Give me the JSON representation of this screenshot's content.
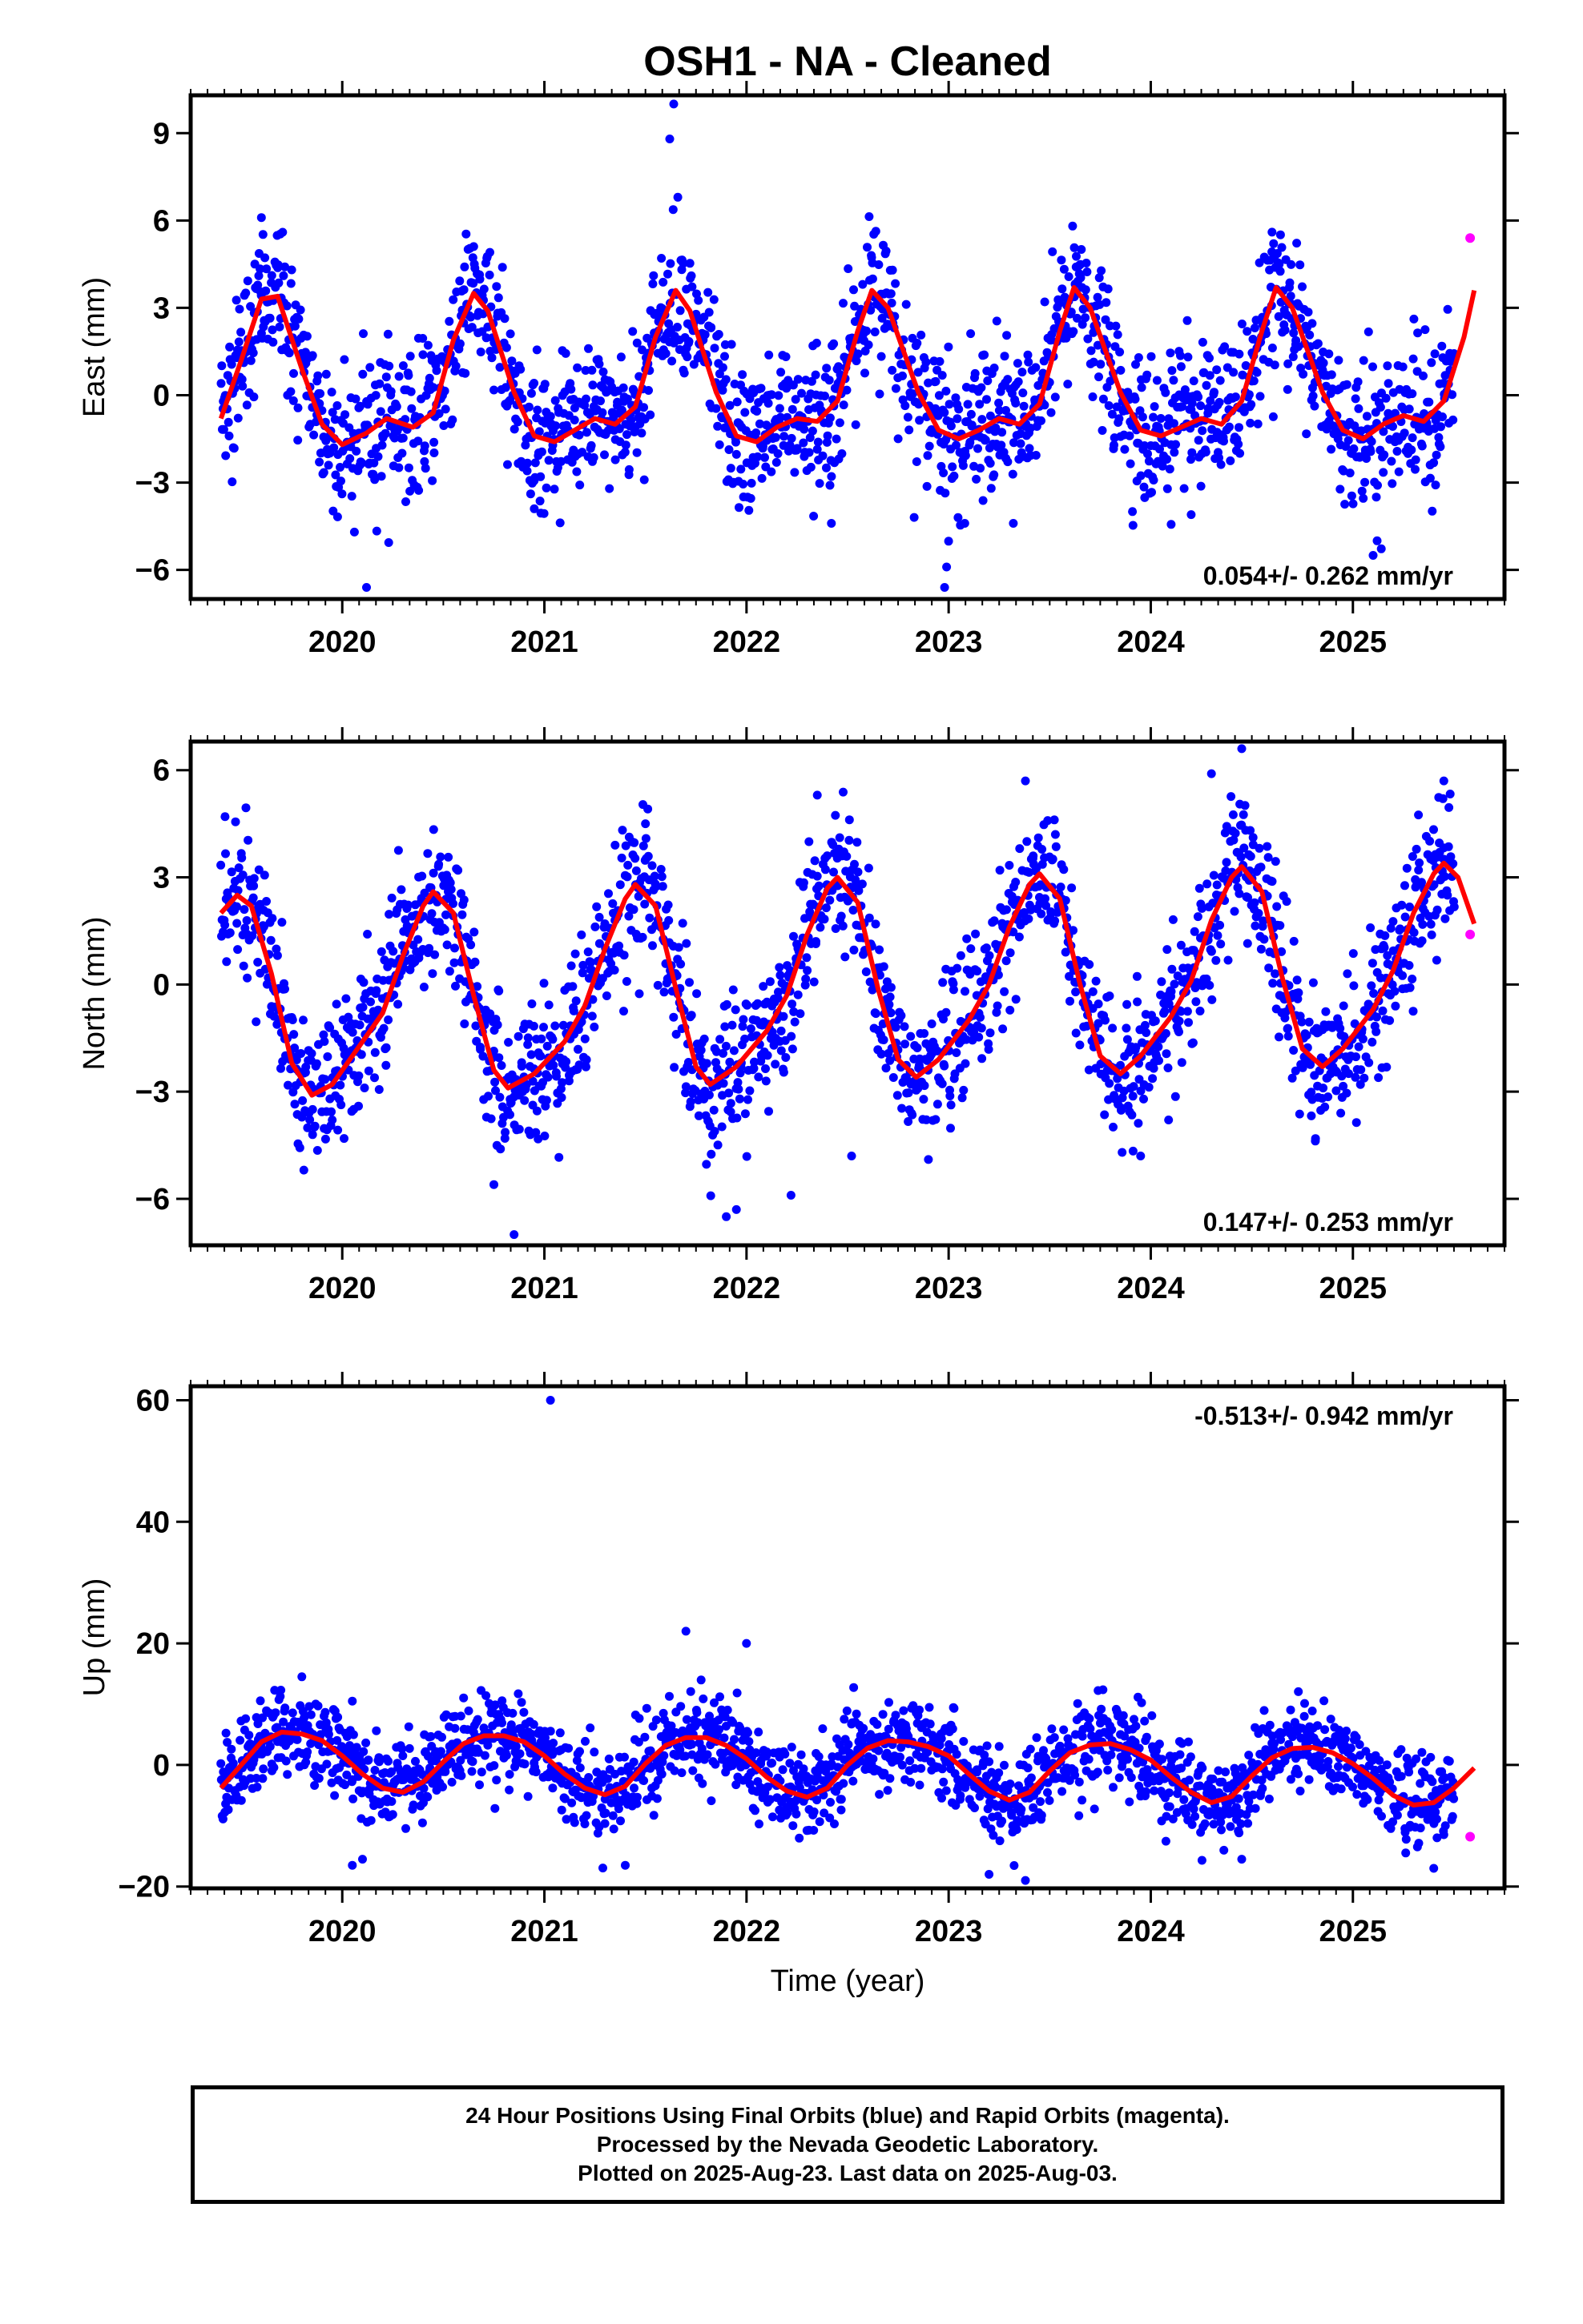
{
  "title": "OSH1  - NA - Cleaned",
  "x_axis_label": "Time (year)",
  "footer": {
    "line1": "24 Hour Positions Using Final Orbits (blue) and Rapid Orbits (magenta).",
    "line2": "Processed by the Nevada Geodetic Laboratory.",
    "line3": "Plotted on 2025-Aug-23. Last data on 2025-Aug-03."
  },
  "colors": {
    "final_orbits": "#0000ff",
    "rapid_orbits": "#ff00ff",
    "model_fit": "#ff0000",
    "frame": "#000000"
  },
  "chart_data": [
    {
      "type": "scatter",
      "component": "east",
      "ylabel": "East (mm)",
      "xlim": [
        2019.25,
        2025.75
      ],
      "ylim": [
        -7.0,
        10.3
      ],
      "x_ticks": [
        2020,
        2021,
        2022,
        2023,
        2024,
        2025
      ],
      "y_ticks": [
        -6,
        -3,
        0,
        3,
        6,
        9
      ],
      "velocity_label": "0.054+/- 0.262 mm/yr",
      "velocity_label_position": "bottom-right",
      "data_start": 2019.4,
      "data_end": 2025.5,
      "seasonal_fit": [
        [
          2019.4,
          -0.8
        ],
        [
          2019.5,
          1.2
        ],
        [
          2019.6,
          3.3
        ],
        [
          2019.68,
          3.4
        ],
        [
          2019.8,
          0.9
        ],
        [
          2019.9,
          -1.0
        ],
        [
          2020.0,
          -1.7
        ],
        [
          2020.12,
          -1.3
        ],
        [
          2020.22,
          -0.8
        ],
        [
          2020.35,
          -1.1
        ],
        [
          2020.45,
          -0.6
        ],
        [
          2020.55,
          1.9
        ],
        [
          2020.65,
          3.5
        ],
        [
          2020.72,
          2.9
        ],
        [
          2020.85,
          0.1
        ],
        [
          2020.95,
          -1.4
        ],
        [
          2021.05,
          -1.6
        ],
        [
          2021.15,
          -1.2
        ],
        [
          2021.25,
          -0.8
        ],
        [
          2021.35,
          -1.0
        ],
        [
          2021.45,
          -0.4
        ],
        [
          2021.55,
          2.0
        ],
        [
          2021.65,
          3.6
        ],
        [
          2021.72,
          2.9
        ],
        [
          2021.85,
          0.1
        ],
        [
          2021.95,
          -1.4
        ],
        [
          2022.05,
          -1.6
        ],
        [
          2022.15,
          -1.1
        ],
        [
          2022.25,
          -0.8
        ],
        [
          2022.35,
          -0.9
        ],
        [
          2022.45,
          -0.2
        ],
        [
          2022.55,
          2.2
        ],
        [
          2022.62,
          3.6
        ],
        [
          2022.7,
          3.0
        ],
        [
          2022.85,
          0.1
        ],
        [
          2022.95,
          -1.2
        ],
        [
          2023.05,
          -1.5
        ],
        [
          2023.15,
          -1.2
        ],
        [
          2023.25,
          -0.8
        ],
        [
          2023.35,
          -1.0
        ],
        [
          2023.45,
          -0.3
        ],
        [
          2023.55,
          2.2
        ],
        [
          2023.62,
          3.7
        ],
        [
          2023.7,
          3.0
        ],
        [
          2023.85,
          0.1
        ],
        [
          2023.95,
          -1.2
        ],
        [
          2024.05,
          -1.4
        ],
        [
          2024.15,
          -1.1
        ],
        [
          2024.25,
          -0.8
        ],
        [
          2024.35,
          -1.0
        ],
        [
          2024.45,
          -0.2
        ],
        [
          2024.55,
          2.2
        ],
        [
          2024.62,
          3.7
        ],
        [
          2024.7,
          3.0
        ],
        [
          2024.85,
          0.1
        ],
        [
          2024.95,
          -1.2
        ],
        [
          2025.05,
          -1.5
        ],
        [
          2025.15,
          -1.0
        ],
        [
          2025.25,
          -0.7
        ],
        [
          2025.35,
          -0.9
        ],
        [
          2025.45,
          -0.2
        ],
        [
          2025.55,
          2.0
        ],
        [
          2025.6,
          3.6
        ]
      ],
      "noise_sd": 1.25,
      "outliers": [
        [
          2019.6,
          6.1
        ],
        [
          2020.06,
          -4.7
        ],
        [
          2020.12,
          -6.6
        ],
        [
          2020.95,
          -3.9
        ],
        [
          2021.62,
          8.8
        ],
        [
          2021.64,
          10.0
        ],
        [
          2021.66,
          6.8
        ],
        [
          2022.42,
          -4.4
        ],
        [
          2022.98,
          -6.6
        ],
        [
          2022.99,
          -5.9
        ],
        [
          2023.08,
          -4.4
        ],
        [
          2023.32,
          -4.4
        ],
        [
          2024.2,
          -4.1
        ],
        [
          2024.6,
          5.6
        ],
        [
          2025.1,
          -5.5
        ],
        [
          2025.12,
          -5.0
        ]
      ],
      "rapid_points": [
        [
          2025.58,
          5.4
        ]
      ]
    },
    {
      "type": "scatter",
      "component": "north",
      "ylabel": "North (mm)",
      "xlim": [
        2019.25,
        2025.75
      ],
      "ylim": [
        -7.3,
        6.8
      ],
      "x_ticks": [
        2020,
        2021,
        2022,
        2023,
        2024,
        2025
      ],
      "y_ticks": [
        -6,
        -3,
        0,
        3,
        6
      ],
      "velocity_label": "0.147+/- 0.253 mm/yr",
      "velocity_label_position": "bottom-right",
      "data_start": 2019.4,
      "data_end": 2025.5,
      "seasonal_fit": [
        [
          2019.4,
          2.0
        ],
        [
          2019.48,
          2.5
        ],
        [
          2019.55,
          2.2
        ],
        [
          2019.65,
          0.3
        ],
        [
          2019.75,
          -2.2
        ],
        [
          2019.85,
          -3.1
        ],
        [
          2019.95,
          -2.8
        ],
        [
          2020.1,
          -1.6
        ],
        [
          2020.2,
          -0.8
        ],
        [
          2020.3,
          0.8
        ],
        [
          2020.4,
          2.2
        ],
        [
          2020.45,
          2.6
        ],
        [
          2020.55,
          2.0
        ],
        [
          2020.65,
          -0.3
        ],
        [
          2020.75,
          -2.4
        ],
        [
          2020.82,
          -2.9
        ],
        [
          2020.95,
          -2.5
        ],
        [
          2021.1,
          -1.6
        ],
        [
          2021.2,
          -0.6
        ],
        [
          2021.3,
          1.0
        ],
        [
          2021.4,
          2.4
        ],
        [
          2021.45,
          2.8
        ],
        [
          2021.55,
          2.2
        ],
        [
          2021.65,
          -0.1
        ],
        [
          2021.75,
          -2.3
        ],
        [
          2021.82,
          -2.8
        ],
        [
          2021.95,
          -2.3
        ],
        [
          2022.1,
          -1.3
        ],
        [
          2022.2,
          -0.3
        ],
        [
          2022.3,
          1.4
        ],
        [
          2022.4,
          2.7
        ],
        [
          2022.45,
          3.0
        ],
        [
          2022.55,
          2.3
        ],
        [
          2022.65,
          -0.1
        ],
        [
          2022.75,
          -2.1
        ],
        [
          2022.84,
          -2.6
        ],
        [
          2022.95,
          -2.1
        ],
        [
          2023.1,
          -1.0
        ],
        [
          2023.2,
          0.0
        ],
        [
          2023.3,
          1.6
        ],
        [
          2023.4,
          2.8
        ],
        [
          2023.45,
          3.1
        ],
        [
          2023.55,
          2.4
        ],
        [
          2023.65,
          0.0
        ],
        [
          2023.75,
          -2.0
        ],
        [
          2023.85,
          -2.5
        ],
        [
          2023.95,
          -2.0
        ],
        [
          2024.1,
          -0.9
        ],
        [
          2024.2,
          0.1
        ],
        [
          2024.3,
          1.8
        ],
        [
          2024.4,
          3.0
        ],
        [
          2024.45,
          3.3
        ],
        [
          2024.55,
          2.6
        ],
        [
          2024.65,
          0.2
        ],
        [
          2024.75,
          -1.8
        ],
        [
          2024.85,
          -2.3
        ],
        [
          2024.95,
          -1.8
        ],
        [
          2025.1,
          -0.7
        ],
        [
          2025.2,
          0.4
        ],
        [
          2025.3,
          2.0
        ],
        [
          2025.4,
          3.1
        ],
        [
          2025.45,
          3.4
        ],
        [
          2025.52,
          3.0
        ],
        [
          2025.6,
          1.7
        ]
      ],
      "noise_sd": 1.0,
      "outliers": [
        [
          2019.42,
          4.7
        ],
        [
          2020.75,
          -5.6
        ],
        [
          2020.85,
          -7.0
        ],
        [
          2021.35,
          3.9
        ],
        [
          2021.5,
          4.5
        ],
        [
          2021.9,
          -6.5
        ],
        [
          2021.95,
          -6.3
        ],
        [
          2022.22,
          -5.9
        ],
        [
          2022.35,
          5.3
        ],
        [
          2022.52,
          -4.8
        ],
        [
          2022.9,
          -4.9
        ],
        [
          2023.38,
          5.7
        ],
        [
          2023.95,
          -4.8
        ],
        [
          2024.3,
          5.9
        ],
        [
          2024.45,
          6.6
        ],
        [
          2025.45,
          5.7
        ]
      ],
      "rapid_points": [
        [
          2025.58,
          1.4
        ]
      ]
    },
    {
      "type": "scatter",
      "component": "up",
      "ylabel": "Up (mm)",
      "xlim": [
        2019.25,
        2025.75
      ],
      "ylim": [
        -20.3,
        62.3
      ],
      "x_ticks": [
        2020,
        2021,
        2022,
        2023,
        2024,
        2025
      ],
      "y_ticks": [
        -20,
        0,
        20,
        40,
        60
      ],
      "velocity_label": "-0.513+/- 0.942 mm/yr",
      "velocity_label_position": "top-right",
      "data_start": 2019.4,
      "data_end": 2025.5,
      "seasonal_fit": [
        [
          2019.4,
          -3.8
        ],
        [
          2019.5,
          0.0
        ],
        [
          2019.6,
          3.8
        ],
        [
          2019.7,
          5.4
        ],
        [
          2019.8,
          5.1
        ],
        [
          2019.9,
          4.0
        ],
        [
          2020.0,
          1.5
        ],
        [
          2020.1,
          -1.5
        ],
        [
          2020.2,
          -3.8
        ],
        [
          2020.3,
          -4.5
        ],
        [
          2020.4,
          -2.8
        ],
        [
          2020.5,
          0.5
        ],
        [
          2020.6,
          3.5
        ],
        [
          2020.7,
          4.8
        ],
        [
          2020.8,
          4.8
        ],
        [
          2020.9,
          3.8
        ],
        [
          2021.0,
          1.5
        ],
        [
          2021.1,
          -1.5
        ],
        [
          2021.2,
          -3.8
        ],
        [
          2021.3,
          -4.9
        ],
        [
          2021.4,
          -3.5
        ],
        [
          2021.5,
          0.2
        ],
        [
          2021.6,
          3.2
        ],
        [
          2021.7,
          4.5
        ],
        [
          2021.8,
          4.5
        ],
        [
          2021.9,
          3.2
        ],
        [
          2022.0,
          1.0
        ],
        [
          2022.1,
          -2.0
        ],
        [
          2022.2,
          -4.3
        ],
        [
          2022.3,
          -5.3
        ],
        [
          2022.4,
          -3.8
        ],
        [
          2022.5,
          0.0
        ],
        [
          2022.6,
          2.8
        ],
        [
          2022.7,
          4.0
        ],
        [
          2022.8,
          3.8
        ],
        [
          2022.9,
          3.0
        ],
        [
          2023.0,
          1.5
        ],
        [
          2023.1,
          -1.5
        ],
        [
          2023.2,
          -4.3
        ],
        [
          2023.3,
          -5.8
        ],
        [
          2023.4,
          -4.5
        ],
        [
          2023.5,
          -1.0
        ],
        [
          2023.6,
          2.0
        ],
        [
          2023.7,
          3.3
        ],
        [
          2023.8,
          3.5
        ],
        [
          2023.9,
          2.5
        ],
        [
          2024.0,
          0.8
        ],
        [
          2024.1,
          -2.0
        ],
        [
          2024.2,
          -4.5
        ],
        [
          2024.3,
          -6.2
        ],
        [
          2024.4,
          -5.2
        ],
        [
          2024.5,
          -1.8
        ],
        [
          2024.6,
          1.2
        ],
        [
          2024.7,
          2.7
        ],
        [
          2024.8,
          2.9
        ],
        [
          2024.9,
          2.0
        ],
        [
          2025.0,
          0.2
        ],
        [
          2025.1,
          -2.2
        ],
        [
          2025.2,
          -5.0
        ],
        [
          2025.3,
          -6.6
        ],
        [
          2025.4,
          -6.2
        ],
        [
          2025.5,
          -3.8
        ],
        [
          2025.6,
          -0.5
        ]
      ],
      "noise_sd": 3.6,
      "outliers": [
        [
          2021.03,
          60.0
        ],
        [
          2021.7,
          22.0
        ],
        [
          2022.0,
          20.0
        ],
        [
          2020.05,
          -16.5
        ],
        [
          2020.1,
          -15.5
        ],
        [
          2021.4,
          -16.5
        ],
        [
          2023.2,
          -18.0
        ],
        [
          2023.38,
          -19.0
        ],
        [
          2024.45,
          -15.5
        ],
        [
          2025.4,
          -17.0
        ],
        [
          2019.8,
          14.5
        ],
        [
          2020.05,
          10.5
        ]
      ],
      "rapid_points": [
        [
          2025.58,
          -11.8
        ]
      ]
    }
  ]
}
